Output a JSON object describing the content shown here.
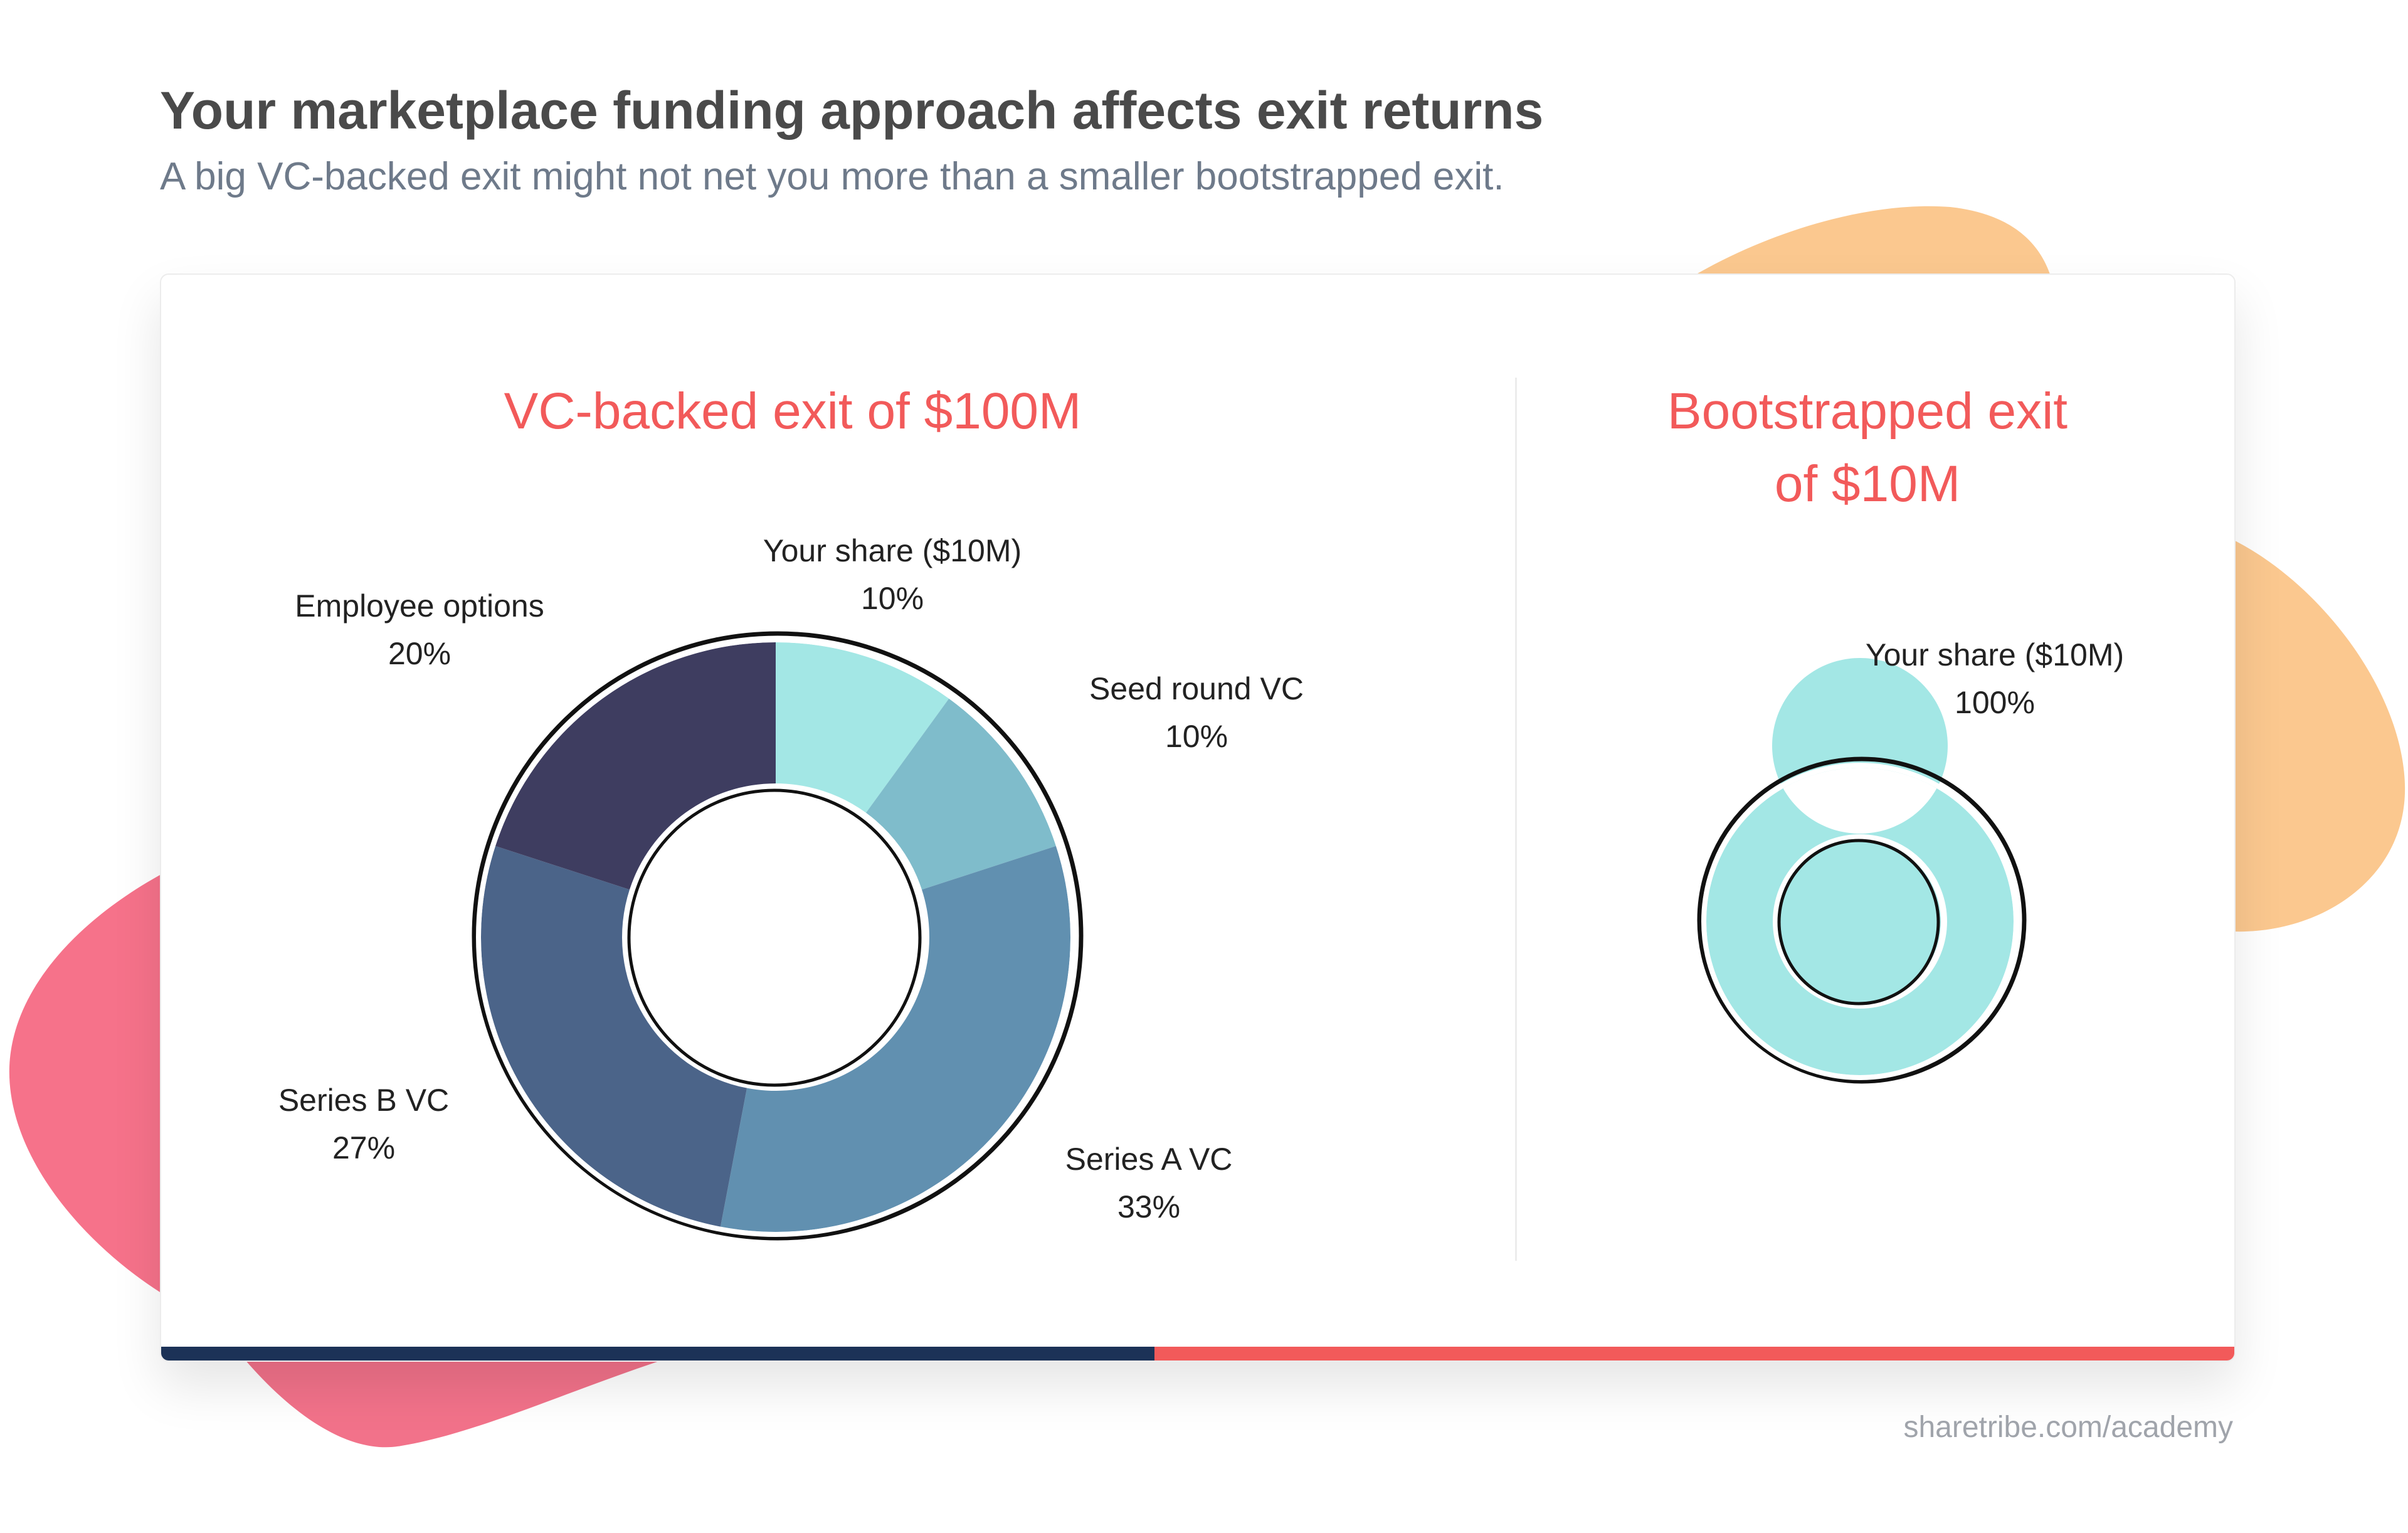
{
  "header": {
    "title": "Your marketplace funding approach affects exit returns",
    "subtitle": "A big VC-backed exit might not net you more than a smaller bootstrapped exit."
  },
  "footer": {
    "source": "sharetribe.com/academy"
  },
  "colors": {
    "accent": "#f25a5a",
    "navy": "#1c3257",
    "blob_orange": "#fbc88f",
    "blob_pink": "#f6728a"
  },
  "chart_data": [
    {
      "type": "pie",
      "variant": "donut",
      "title": "VC-backed exit of $100M",
      "categories": [
        "Your share ($10M)",
        "Seed round VC",
        "Series A VC",
        "Series B VC",
        "Employee options"
      ],
      "values": [
        10,
        10,
        33,
        27,
        20
      ],
      "value_labels": [
        "10%",
        "10%",
        "33%",
        "27%",
        "20%"
      ],
      "colors": [
        "#a3e7e5",
        "#7fbccb",
        "#6190b0",
        "#4b6489",
        "#3e3d60"
      ],
      "start": "top",
      "direction": "clockwise"
    },
    {
      "type": "pie",
      "variant": "donut",
      "title_lines": [
        "Bootstrapped exit",
        "of $10M"
      ],
      "categories": [
        "Your share ($10M)"
      ],
      "values": [
        100
      ],
      "value_labels": [
        "100%"
      ],
      "colors": [
        "#a3e7e5"
      ]
    }
  ]
}
